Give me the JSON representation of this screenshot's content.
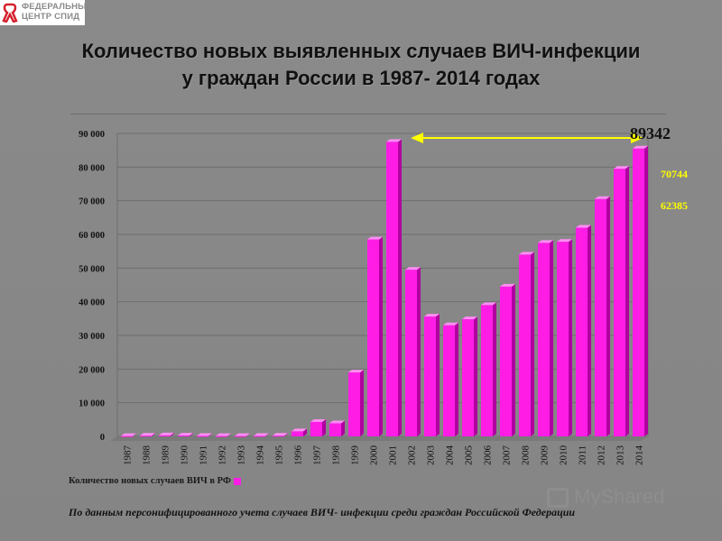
{
  "logo": {
    "line1": "ФЕДЕРАЛЬНЫЙ",
    "line2": "ЦЕНТР СПИД"
  },
  "title": {
    "line1": "Количество новых выявленных случаев ВИЧ-инфекции",
    "line2": "у граждан России в 1987- 2014 годах"
  },
  "legend": {
    "label": "Количество новых случаев ВИЧ в РФ"
  },
  "source": "По данным персонифицированного учета случаев ВИЧ- инфекции среди граждан Российской Федерации",
  "watermark": "MyShared",
  "colors": {
    "bar": "#ff1de6",
    "bar_side": "#b0009f",
    "bar_top": "#ff8df5",
    "annotation_arrow": "#ffff00",
    "side_labels": "#ffff00"
  },
  "chart_data": {
    "type": "bar",
    "categories": [
      "1987",
      "1988",
      "1989",
      "1990",
      "1991",
      "1992",
      "1993",
      "1994",
      "1995",
      "1996",
      "1997",
      "1998",
      "1999",
      "2000",
      "2001",
      "2002",
      "2003",
      "2004",
      "2005",
      "2006",
      "2007",
      "2008",
      "2009",
      "2010",
      "2011",
      "2012",
      "2013",
      "2014"
    ],
    "series": [
      {
        "name": "Количество новых случаев ВИЧ в РФ",
        "values": [
          100,
          200,
          300,
          250,
          150,
          100,
          100,
          150,
          200,
          1500,
          4300,
          3900,
          19000,
          58500,
          87500,
          49500,
          35600,
          33000,
          34800,
          39000,
          44500,
          54000,
          57500,
          57800,
          62000,
          70500,
          79500,
          85500
        ]
      }
    ],
    "y_ticks": [
      "0",
      "10 000",
      "20 000",
      "30 000",
      "40 000",
      "50 000",
      "60 000",
      "70 000",
      "80 000",
      "90 000"
    ],
    "ylim": [
      0,
      90000
    ],
    "grid": true,
    "annotations": {
      "peak_label": "89342",
      "side_labels": [
        "70744",
        "62385"
      ]
    }
  }
}
